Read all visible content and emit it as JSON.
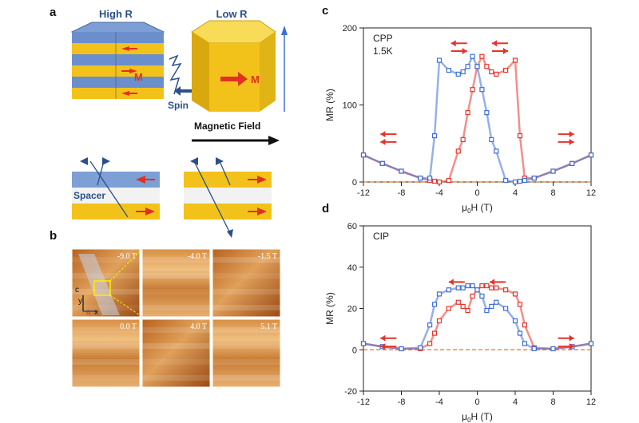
{
  "panel_a": {
    "label": "a",
    "high_r": "High R",
    "low_r": "Low R",
    "m1": "M",
    "m2": "M",
    "spin": "Spin",
    "field": "Magnetic Field",
    "spacer": "Spacer"
  },
  "panel_b": {
    "label": "b",
    "images": [
      "-9.0 T",
      "-4.0 T",
      "-1.5 T",
      "0.0 T",
      "4.0 T",
      "5.1 T"
    ],
    "axes": [
      "c",
      "y",
      "a",
      "x"
    ]
  },
  "chart_data": [
    {
      "type": "scatter",
      "label": "c",
      "annotations": [
        "CPP",
        "1.5K"
      ],
      "xlabel": {
        "base": "μ",
        "sub": "0",
        "rest": "H (T)"
      },
      "ylabel": "MR (%)",
      "x": [
        -12,
        -10,
        -8,
        -6,
        -5,
        -4.5,
        -4,
        -3,
        -2,
        -1.5,
        -1,
        -0.5,
        0,
        0.5,
        1,
        1.5,
        2,
        3,
        4,
        4.5,
        5,
        6,
        8,
        10,
        12
      ],
      "series": [
        {
          "name": null,
          "color": "#e8332a",
          "values": [
            35,
            24,
            14,
            5,
            2,
            1,
            0,
            2,
            40,
            55,
            90,
            120,
            150,
            163,
            150,
            143,
            140,
            145,
            158,
            60,
            5,
            5,
            14,
            24,
            35
          ]
        },
        {
          "name": null,
          "color": "#3f6fd8",
          "values": [
            35,
            24,
            14,
            5,
            5,
            60,
            158,
            145,
            140,
            143,
            150,
            163,
            150,
            120,
            90,
            55,
            40,
            2,
            0,
            1,
            2,
            5,
            14,
            24,
            35
          ]
        }
      ],
      "xlim": [
        -12,
        12
      ],
      "xticks": [
        -12,
        -8,
        -4,
        0,
        4,
        8,
        12
      ],
      "ylim": [
        0,
        200
      ],
      "yticks": [
        0,
        100,
        200
      ],
      "zero_line_color": "#d9792a"
    },
    {
      "type": "scatter",
      "label": "d",
      "annotations": [
        "CIP"
      ],
      "xlabel": {
        "base": "μ",
        "sub": "0",
        "rest": "H (T)"
      },
      "ylabel": "MR (%)",
      "x": [
        -12,
        -10,
        -8,
        -6,
        -5,
        -4.5,
        -4,
        -3,
        -2,
        -1.5,
        -1,
        -0.5,
        0,
        0.5,
        1,
        1.5,
        2,
        3,
        4,
        4.5,
        5,
        6,
        8,
        10,
        12
      ],
      "series": [
        {
          "name": null,
          "color": "#e8332a",
          "values": [
            3,
            1.5,
            0.5,
            0.5,
            3,
            8,
            14,
            20,
            23,
            21,
            19,
            26,
            29,
            31,
            31,
            30,
            30,
            29,
            27,
            22,
            12,
            1,
            0.5,
            1.5,
            3
          ]
        },
        {
          "name": null,
          "color": "#3f6fd8",
          "values": [
            3,
            1.5,
            0.5,
            1,
            12,
            22,
            27,
            29,
            30,
            30,
            31,
            31,
            29,
            26,
            19,
            21,
            23,
            20,
            14,
            8,
            3,
            0.5,
            0.5,
            1.5,
            3
          ]
        }
      ],
      "xlim": [
        -12,
        12
      ],
      "xticks": [
        -12,
        -8,
        -4,
        0,
        4,
        8,
        12
      ],
      "ylim": [
        -20,
        60
      ],
      "yticks": [
        -20,
        0,
        20,
        40,
        60
      ],
      "zero_line_color": "#d9792a"
    }
  ]
}
